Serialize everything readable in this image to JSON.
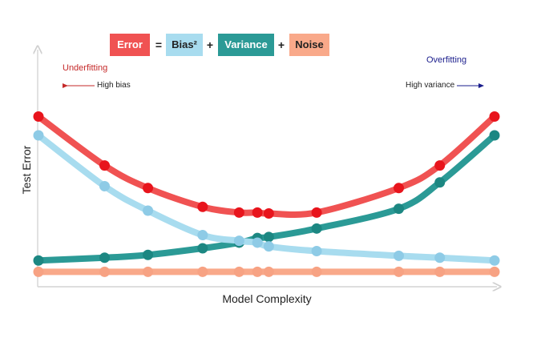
{
  "equation": {
    "terms": [
      {
        "label": "Error",
        "color": "#f05252",
        "text_color": "#ffffff"
      },
      {
        "label": "Bias²",
        "color": "#a8dcef",
        "text_color": "#222222"
      },
      {
        "label": "Variance",
        "color": "#2b9a96",
        "text_color": "#ffffff"
      },
      {
        "label": "Noise",
        "color": "#f9a98a",
        "text_color": "#222222"
      }
    ],
    "ops": [
      "=",
      "+",
      "+"
    ]
  },
  "annotations": {
    "underfitting": "Underfitting",
    "overfitting": "Overfitting",
    "high_bias": "High bias",
    "high_variance": "High variance"
  },
  "chart_data": {
    "type": "line",
    "title": "",
    "xlabel": "Model Complexity",
    "ylabel": "Test Error",
    "xlim": [
      0,
      10
    ],
    "ylim": [
      0,
      10
    ],
    "grid": false,
    "ticks": false,
    "x": [
      0,
      1.45,
      2.4,
      3.6,
      4.4,
      4.8,
      5.05,
      6.1,
      7.9,
      8.8,
      10
    ],
    "series": [
      {
        "name": "Error",
        "color": "#f05252",
        "point_color": "#e8141c",
        "values": [
          8.0,
          5.4,
          4.2,
          3.2,
          2.9,
          2.9,
          2.85,
          2.9,
          4.2,
          5.4,
          8.0
        ]
      },
      {
        "name": "Bias²",
        "color": "#a8dcef",
        "point_color": "#8ecbe6",
        "values": [
          7.0,
          4.3,
          3.0,
          1.7,
          1.4,
          1.3,
          1.1,
          0.85,
          0.6,
          0.5,
          0.35
        ]
      },
      {
        "name": "Variance",
        "color": "#2b9a96",
        "point_color": "#1c8782",
        "values": [
          0.35,
          0.5,
          0.65,
          1.0,
          1.3,
          1.55,
          1.6,
          2.05,
          3.1,
          4.5,
          7.0
        ]
      },
      {
        "name": "Noise",
        "color": "#f9a98a",
        "point_color": "#f7a283",
        "values": [
          -0.25,
          -0.25,
          -0.25,
          -0.25,
          -0.25,
          -0.25,
          -0.25,
          -0.25,
          -0.25,
          -0.25,
          -0.25
        ]
      }
    ]
  }
}
